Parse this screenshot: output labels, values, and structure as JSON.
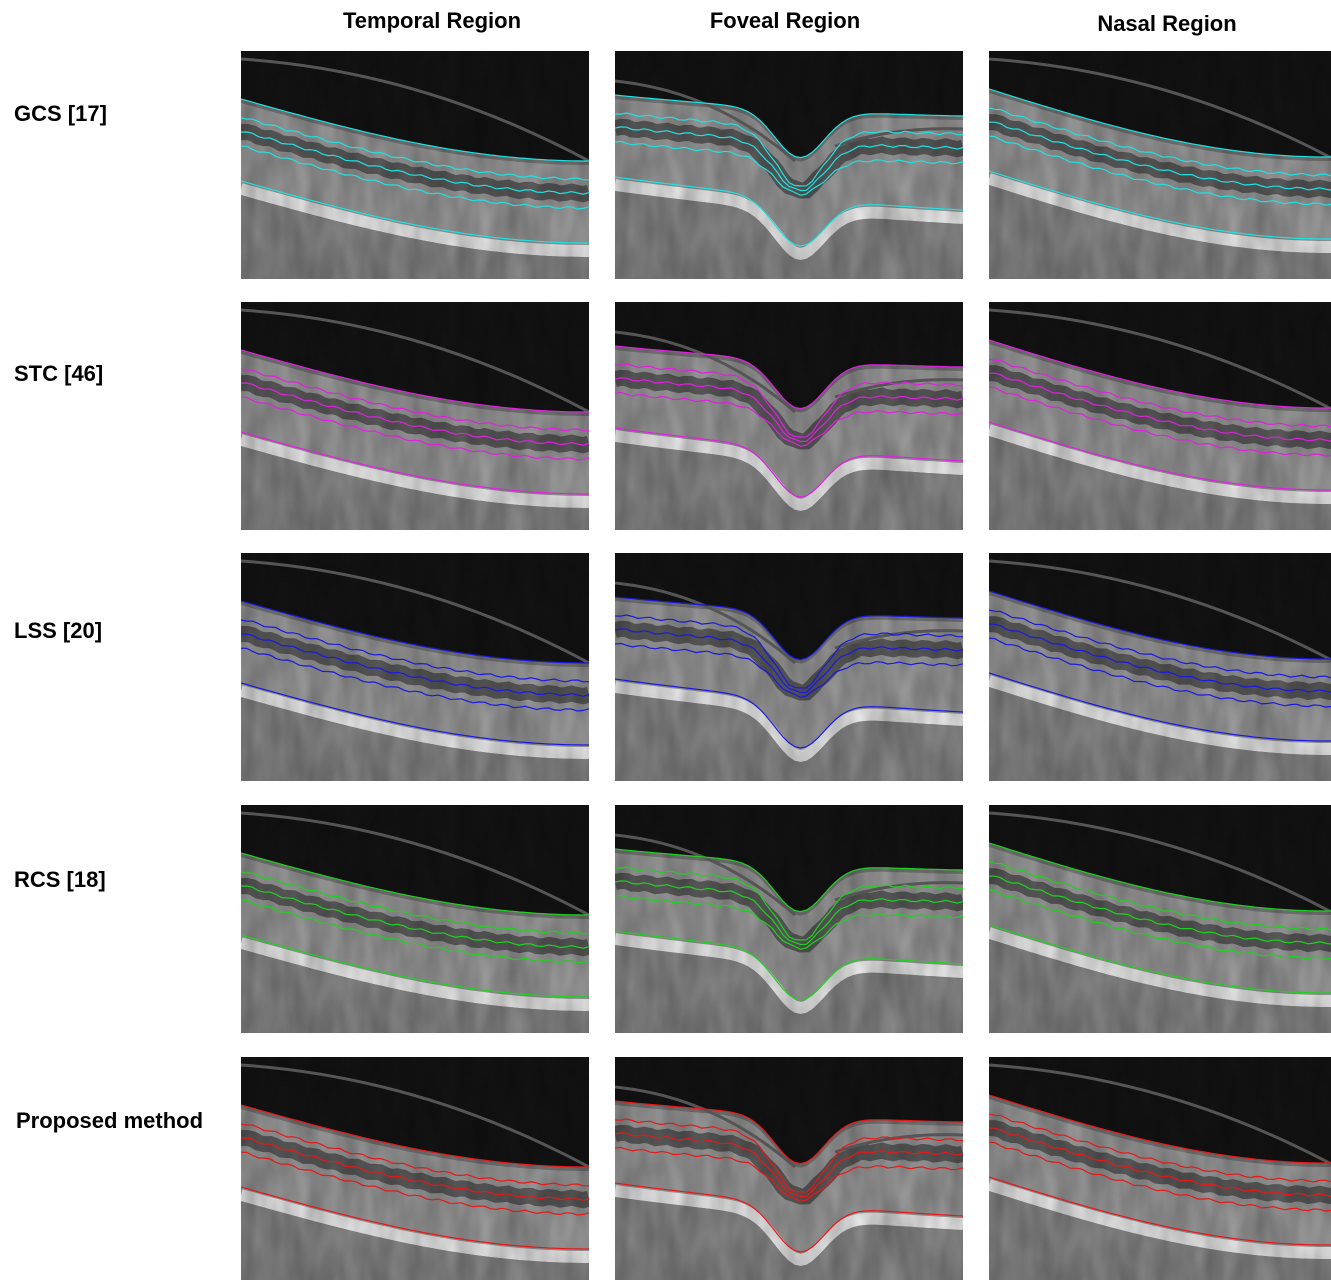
{
  "columns": [
    "Temporal Region",
    "Foveal Region",
    "Nasal Region"
  ],
  "rows": [
    {
      "label": "GCS [17]",
      "color": "#22e0e0"
    },
    {
      "label": "STC [46]",
      "color": "#e020e0"
    },
    {
      "label": "LSS [20]",
      "color": "#1a1ae0"
    },
    {
      "label": "RCS [18]",
      "color": "#20d020"
    },
    {
      "label": "Proposed method",
      "color": "#e81818"
    }
  ]
}
